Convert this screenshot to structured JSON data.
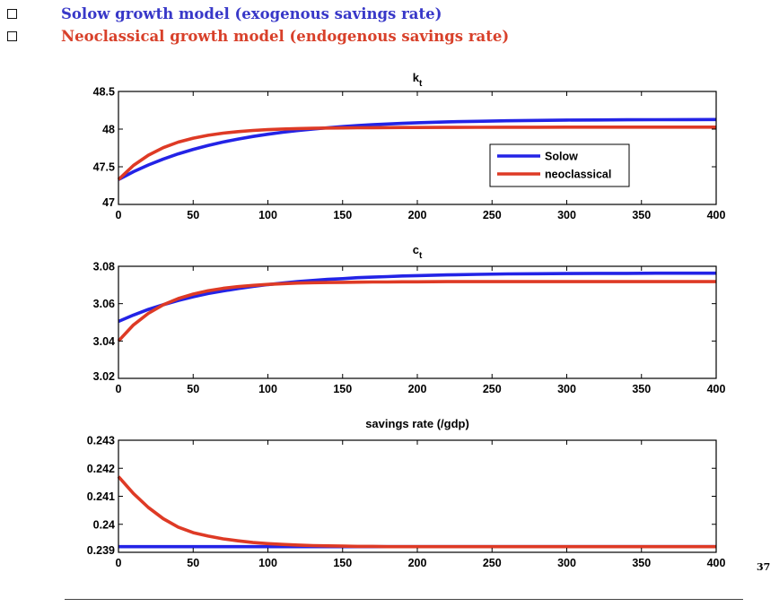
{
  "header": {
    "bullets": [
      {
        "text": "Solow growth model (exogenous savings rate)",
        "color": "#3838c8"
      },
      {
        "text": "Neoclassical growth model (endogenous savings rate)",
        "color": "#d8402a"
      }
    ]
  },
  "page_number": "37",
  "colors": {
    "solow": "#2323e6",
    "neoclassical": "#de3a25"
  },
  "chart_data": [
    {
      "type": "line",
      "title": "k",
      "title_subscript": "t",
      "xlim": [
        0,
        400
      ],
      "ylim": [
        47,
        48.5
      ],
      "x_ticks": [
        0,
        50,
        100,
        150,
        200,
        250,
        300,
        350,
        400
      ],
      "y_ticks": [
        47,
        47.5,
        48,
        48.5
      ],
      "y_tick_labels": [
        "47",
        "47.5",
        "48",
        "48.5"
      ],
      "legend": {
        "position": "right-middle",
        "entries": [
          "Solow",
          "neoclassical"
        ]
      },
      "series": [
        {
          "name": "Solow",
          "x": [
            0,
            10,
            20,
            30,
            40,
            50,
            60,
            70,
            80,
            90,
            100,
            110,
            120,
            130,
            140,
            150,
            160,
            170,
            180,
            190,
            200,
            220,
            240,
            260,
            280,
            300,
            320,
            340,
            360,
            380,
            400
          ],
          "values": [
            47.33,
            47.434,
            47.524,
            47.602,
            47.671,
            47.731,
            47.783,
            47.828,
            47.868,
            47.902,
            47.932,
            47.958,
            47.981,
            48.001,
            48.018,
            48.033,
            48.046,
            48.058,
            48.068,
            48.076,
            48.084,
            48.096,
            48.104,
            48.111,
            48.116,
            48.12,
            48.122,
            48.124,
            48.125,
            48.126,
            48.127
          ]
        },
        {
          "name": "neoclassical",
          "x": [
            0,
            10,
            20,
            30,
            40,
            50,
            60,
            70,
            80,
            90,
            100,
            110,
            120,
            130,
            140,
            150,
            160,
            170,
            180,
            190,
            200,
            220,
            240,
            260,
            280,
            300,
            320,
            340,
            360,
            380,
            400
          ],
          "values": [
            47.33,
            47.518,
            47.654,
            47.754,
            47.827,
            47.88,
            47.918,
            47.946,
            47.967,
            47.982,
            47.993,
            48.001,
            48.007,
            48.011,
            48.014,
            48.016,
            48.018,
            48.019,
            48.02,
            48.021,
            48.022,
            48.023,
            48.024,
            48.025,
            48.025,
            48.026,
            48.026,
            48.026,
            48.026,
            48.026,
            48.026
          ]
        }
      ]
    },
    {
      "type": "line",
      "title": "c",
      "title_subscript": "t",
      "xlim": [
        0,
        400
      ],
      "ylim": [
        3.02,
        3.08
      ],
      "x_ticks": [
        0,
        50,
        100,
        150,
        200,
        250,
        300,
        350,
        400
      ],
      "y_ticks": [
        3.02,
        3.04,
        3.06,
        3.08
      ],
      "y_tick_labels": [
        "3.02",
        "3.04",
        "3.06",
        "3.08"
      ],
      "series": [
        {
          "name": "Solow",
          "x": [
            0,
            10,
            20,
            30,
            40,
            50,
            60,
            70,
            80,
            90,
            100,
            110,
            120,
            130,
            140,
            150,
            160,
            170,
            180,
            190,
            200,
            220,
            240,
            260,
            280,
            300,
            320,
            340,
            360,
            380,
            400
          ],
          "values": [
            3.0505,
            3.0539,
            3.0569,
            3.0594,
            3.0617,
            3.0637,
            3.0654,
            3.0668,
            3.0681,
            3.0692,
            3.0702,
            3.071,
            3.0718,
            3.0724,
            3.073,
            3.0734,
            3.0739,
            3.0742,
            3.0745,
            3.0748,
            3.075,
            3.0754,
            3.0757,
            3.0759,
            3.076,
            3.0761,
            3.0762,
            3.0762,
            3.0763,
            3.0763,
            3.0763
          ]
        },
        {
          "name": "neoclassical",
          "x": [
            0,
            10,
            20,
            30,
            40,
            50,
            60,
            70,
            80,
            90,
            100,
            110,
            120,
            130,
            140,
            150,
            160,
            170,
            180,
            190,
            200,
            220,
            240,
            260,
            280,
            300,
            320,
            340,
            360,
            380,
            400
          ],
          "values": [
            3.04,
            3.0486,
            3.0548,
            3.0594,
            3.0627,
            3.0651,
            3.0669,
            3.0682,
            3.0691,
            3.0698,
            3.0703,
            3.0707,
            3.071,
            3.0712,
            3.0713,
            3.0714,
            3.0715,
            3.0716,
            3.0716,
            3.0717,
            3.0717,
            3.0718,
            3.0718,
            3.0718,
            3.0718,
            3.0718,
            3.0718,
            3.0718,
            3.0718,
            3.0718,
            3.0718
          ]
        }
      ]
    },
    {
      "type": "line",
      "title": "savings rate (/gdp)",
      "title_subscript": "",
      "xlim": [
        0,
        400
      ],
      "ylim": [
        0.239,
        0.243
      ],
      "x_ticks": [
        0,
        50,
        100,
        150,
        200,
        250,
        300,
        350,
        400
      ],
      "y_ticks": [
        0.239,
        0.24,
        0.241,
        0.242,
        0.243
      ],
      "y_tick_labels": [
        "0.239",
        "0.24",
        "0.241",
        "0.242",
        "0.243"
      ],
      "series": [
        {
          "name": "Solow",
          "x": [
            0,
            400
          ],
          "values": [
            0.2392,
            0.2392
          ]
        },
        {
          "name": "neoclassical",
          "x": [
            0,
            10,
            20,
            30,
            40,
            50,
            60,
            70,
            80,
            90,
            100,
            110,
            120,
            130,
            140,
            150,
            160,
            170,
            180,
            190,
            200,
            220,
            240,
            260,
            280,
            300,
            320,
            340,
            360,
            380,
            400
          ],
          "values": [
            0.2417,
            0.2411,
            0.2406,
            0.2402,
            0.2399,
            0.2397,
            0.23958,
            0.23948,
            0.23941,
            0.23935,
            0.23931,
            0.23928,
            0.23926,
            0.23924,
            0.23923,
            0.23922,
            0.23921,
            0.23921,
            0.2392,
            0.2392,
            0.2392,
            0.2392,
            0.2392,
            0.2392,
            0.2392,
            0.2392,
            0.2392,
            0.2392,
            0.2392,
            0.2392,
            0.2392
          ]
        }
      ]
    }
  ]
}
